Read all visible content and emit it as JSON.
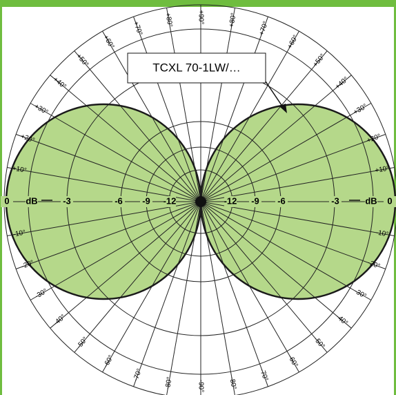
{
  "callout": "TCXL 70-1LW/…",
  "angle_labels": {
    "top": "+90°",
    "bottom": "-90°",
    "left_upper": [
      "+10°",
      "+20°",
      "+30°",
      "+40°",
      "+50°",
      "+60°",
      "+70°",
      "+80°"
    ],
    "left_lower": [
      "-10°",
      "-20°",
      "-30°",
      "-40°",
      "-50°",
      "-60°",
      "-70°",
      "-80°"
    ],
    "right_upper": [
      "+10°",
      "+20°",
      "+30°",
      "+40°",
      "+50°",
      "+60°",
      "+70°",
      "+80°"
    ],
    "right_lower": [
      "-10°",
      "-20°",
      "-30°",
      "-40°",
      "-50°",
      "-60°",
      "-70°",
      "-80°"
    ]
  },
  "scale_left": [
    "0",
    "dB",
    "-3",
    "-6",
    "-9",
    "-12"
  ],
  "scale_right": [
    "-12",
    "-9",
    "-6",
    "-3",
    "dB",
    "0"
  ]
}
